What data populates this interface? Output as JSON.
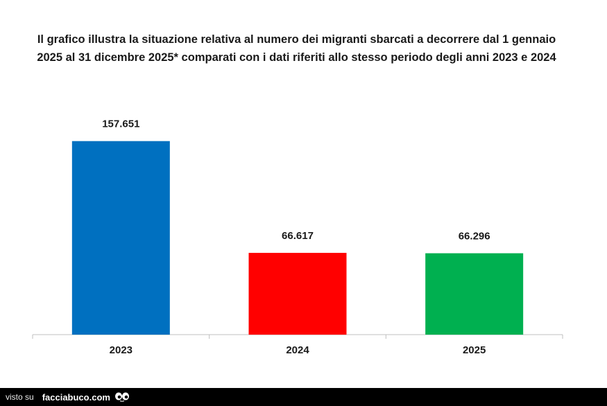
{
  "chart_data": {
    "type": "bar",
    "title": "Il grafico illustra la situazione relativa al numero dei migranti sbarcati a decorrere dal 1 gennaio 2025 al 31 dicembre 2025* comparati con i dati riferiti allo stesso periodo degli anni 2023 e 2024",
    "categories": [
      "2023",
      "2024",
      "2025"
    ],
    "values": [
      157651,
      66617,
      66296
    ],
    "value_labels": [
      "157.651",
      "66.617",
      "66.296"
    ],
    "bar_colors": [
      "#0070C0",
      "#FF0000",
      "#00B050"
    ],
    "ylim": [
      0,
      171000
    ],
    "grid": false,
    "legend": "none",
    "xlabel": "",
    "ylabel": ""
  },
  "footer": {
    "prefix": "visto su",
    "brand": "facciabuco.com",
    "icon": "eyes-icon"
  }
}
